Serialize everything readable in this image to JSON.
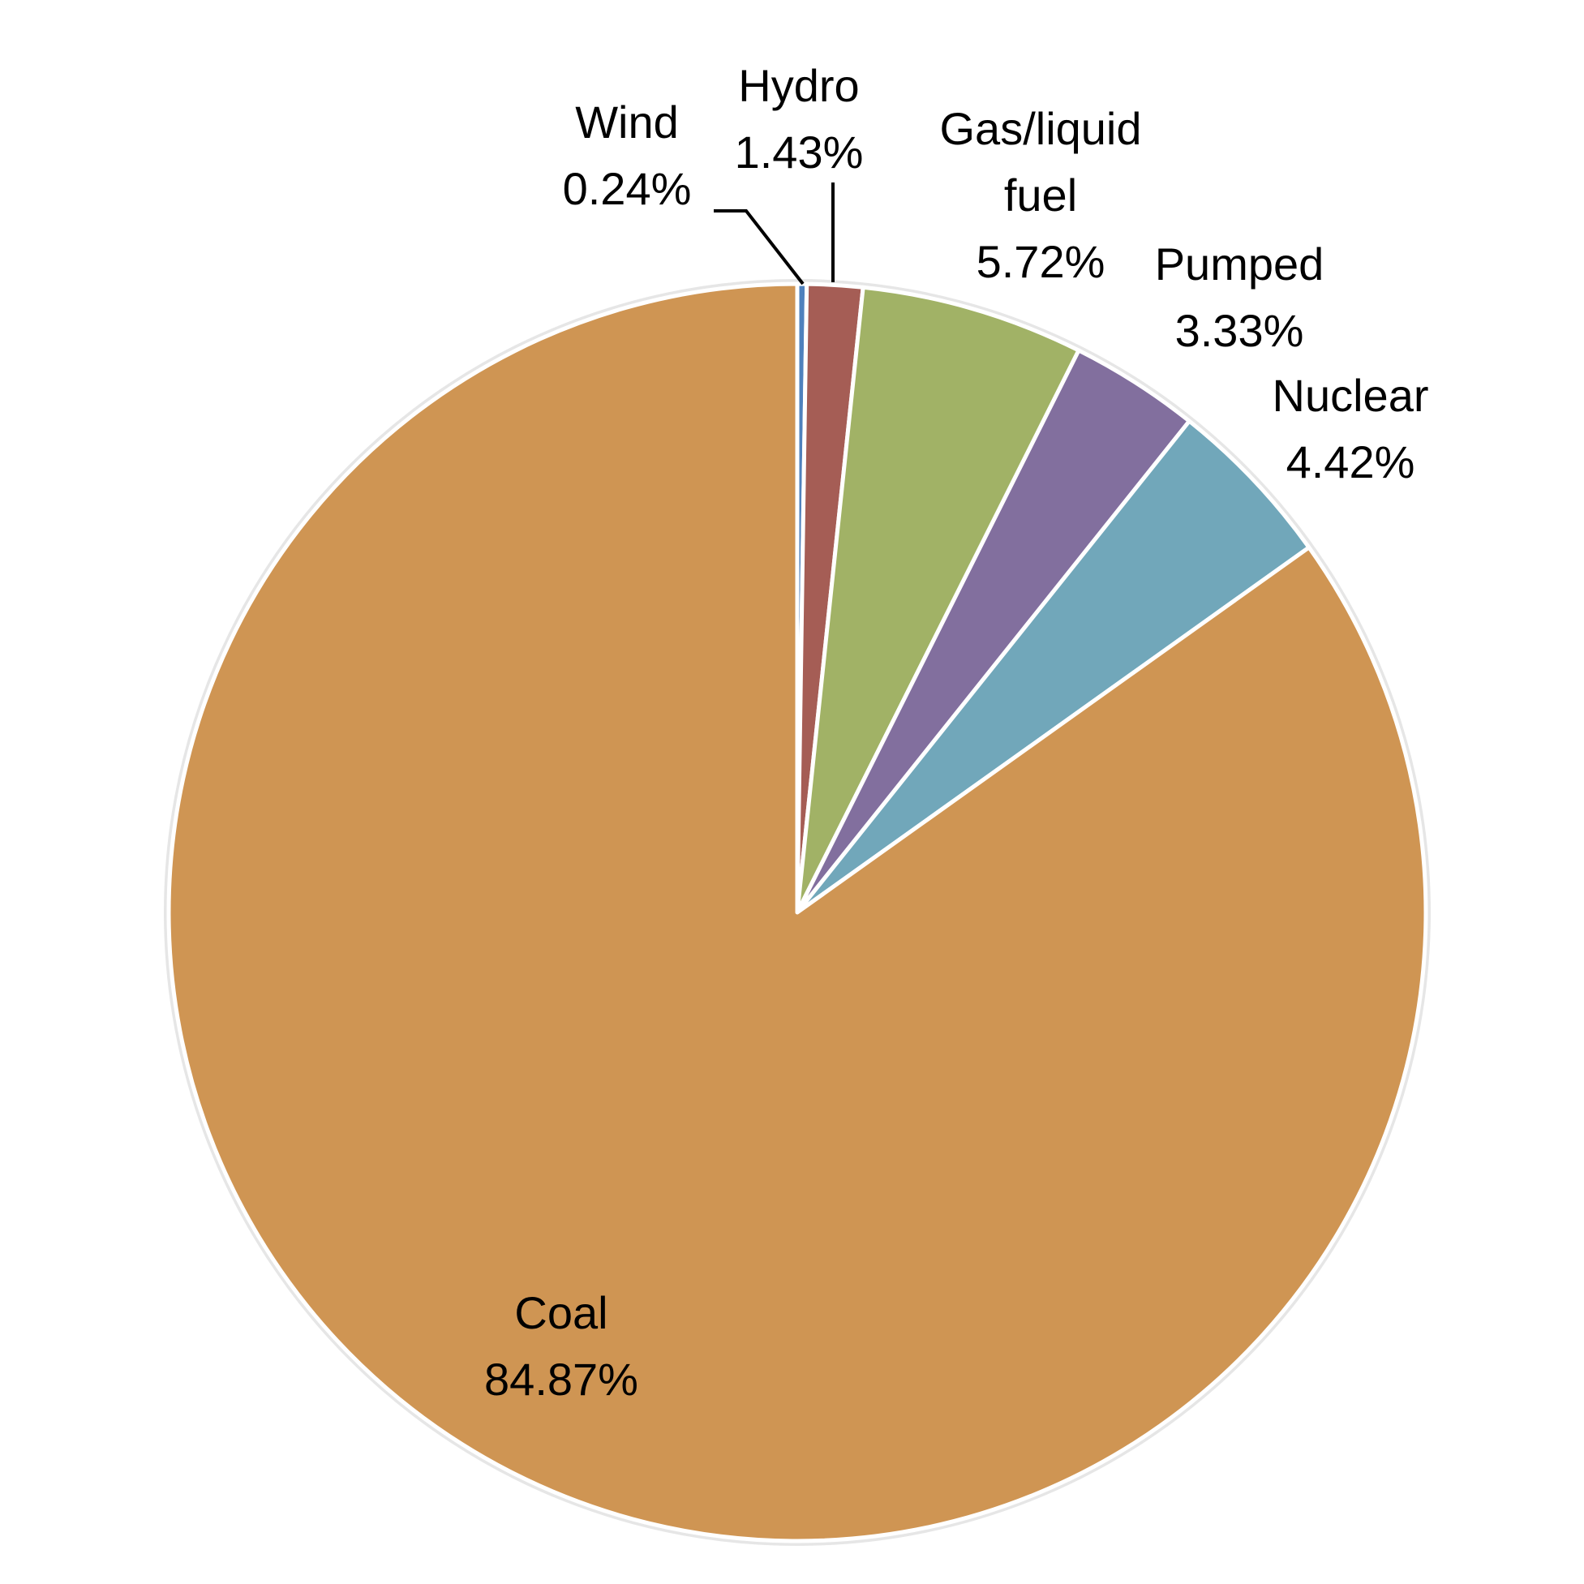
{
  "chart_data": {
    "type": "pie",
    "title": "",
    "slices": [
      {
        "label": "Wind",
        "value": 0.24,
        "value_label": "0.24%",
        "color": "#4f81bd"
      },
      {
        "label": "Hydro",
        "value": 1.43,
        "value_label": "1.43%",
        "color": "#a55d55"
      },
      {
        "label": "Gas/liquid fuel",
        "label_lines": [
          "Gas/liquid",
          "fuel"
        ],
        "value": 5.72,
        "value_label": "5.72%",
        "color": "#a1b266"
      },
      {
        "label": "Pumped",
        "value": 3.33,
        "value_label": "3.33%",
        "color": "#826f9e"
      },
      {
        "label": "Nuclear",
        "value": 4.42,
        "value_label": "4.42%",
        "color": "#71a7ba"
      },
      {
        "label": "Coal",
        "value": 84.87,
        "value_label": "84.87%",
        "color": "#cf9553"
      }
    ],
    "start_angle": "12 o'clock",
    "direction": "clockwise",
    "legend": "none",
    "data_labels": "category and percentage"
  }
}
